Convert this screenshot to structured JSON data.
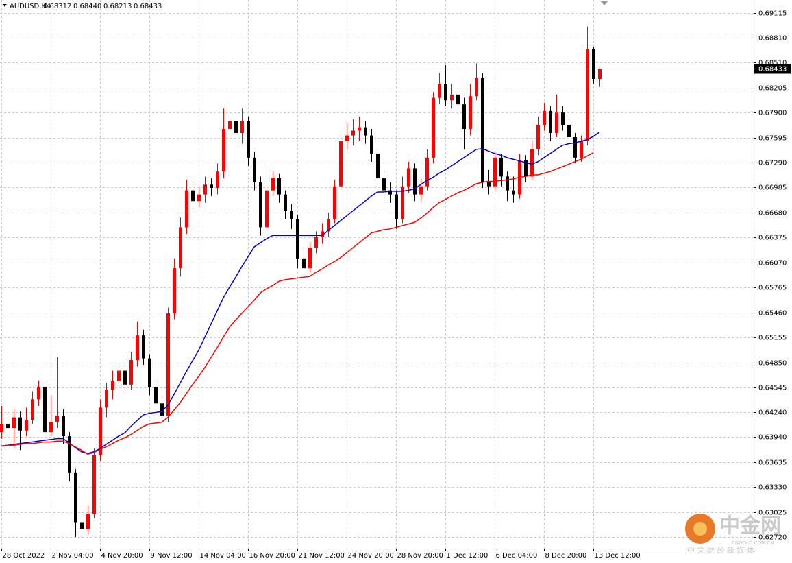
{
  "chart_data": {
    "type": "candlestick",
    "title": "AUDUSD,H4",
    "header_values": [
      {
        "value": 0.68312,
        "label": "0.68312"
      },
      {
        "value": 0.6844,
        "label": "0.68440"
      },
      {
        "value": 0.68213,
        "label": "0.68213"
      },
      {
        "value": 0.68433,
        "label": "0.68433"
      }
    ],
    "current_price": {
      "value": 0.68433,
      "label": "0.68433"
    },
    "up_color": "#ff0000",
    "down_color": "#000000",
    "open": [
      0.64,
      0.641,
      0.6405,
      0.6418,
      0.6402,
      0.6415,
      0.644,
      0.6455,
      0.64,
      0.6412,
      0.642,
      0.6395,
      0.635,
      0.629,
      0.6282,
      0.63,
      0.6372,
      0.643,
      0.6452,
      0.6462,
      0.6475,
      0.6458,
      0.6488,
      0.6518,
      0.649,
      0.6455,
      0.6435,
      0.642,
      0.6545,
      0.66,
      0.665,
      0.6695,
      0.6682,
      0.669,
      0.6702,
      0.6698,
      0.6718,
      0.677,
      0.678,
      0.6765,
      0.678,
      0.6735,
      0.6705,
      0.665,
      0.6695,
      0.671,
      0.669,
      0.667,
      0.666,
      0.6612,
      0.66,
      0.6625,
      0.6638,
      0.6645,
      0.666,
      0.67,
      0.6755,
      0.6762,
      0.6768,
      0.6772,
      0.6762,
      0.674,
      0.671,
      0.6695,
      0.669,
      0.666,
      0.67,
      0.6722,
      0.669,
      0.67,
      0.6735,
      0.6808,
      0.6825,
      0.6805,
      0.6812,
      0.68,
      0.677,
      0.681,
      0.6832,
      0.6705,
      0.67,
      0.6735,
      0.6712,
      0.6695,
      0.669,
      0.6732,
      0.6712,
      0.6745,
      0.6775,
      0.6792,
      0.6765,
      0.679,
      0.6775,
      0.676,
      0.6735,
      0.6755,
      0.6868,
      0.68312
    ],
    "high": [
      0.6432,
      0.642,
      0.6428,
      0.6425,
      0.643,
      0.645,
      0.6463,
      0.646,
      0.6445,
      0.6492,
      0.6428,
      0.64,
      0.6355,
      0.6298,
      0.631,
      0.638,
      0.644,
      0.646,
      0.6475,
      0.6485,
      0.6482,
      0.6498,
      0.6535,
      0.6525,
      0.6495,
      0.6462,
      0.644,
      0.6552,
      0.6612,
      0.6662,
      0.6708,
      0.6705,
      0.67,
      0.6712,
      0.671,
      0.6728,
      0.6795,
      0.679,
      0.6788,
      0.6795,
      0.6785,
      0.6742,
      0.6712,
      0.6702,
      0.6718,
      0.6715,
      0.6695,
      0.6678,
      0.6665,
      0.662,
      0.6632,
      0.6645,
      0.6655,
      0.6668,
      0.6708,
      0.6765,
      0.6778,
      0.6782,
      0.6785,
      0.678,
      0.677,
      0.6745,
      0.6718,
      0.6705,
      0.6695,
      0.6712,
      0.673,
      0.6728,
      0.671,
      0.6745,
      0.6815,
      0.6838,
      0.6848,
      0.6825,
      0.682,
      0.6808,
      0.6825,
      0.685,
      0.6838,
      0.672,
      0.6742,
      0.674,
      0.6718,
      0.6712,
      0.674,
      0.6738,
      0.6755,
      0.6785,
      0.6802,
      0.6798,
      0.6812,
      0.6798,
      0.6782,
      0.6765,
      0.6762,
      0.6895,
      0.687,
      0.6844
    ],
    "low": [
      0.6392,
      0.6385,
      0.638,
      0.6378,
      0.6395,
      0.641,
      0.6432,
      0.639,
      0.6395,
      0.6405,
      0.6385,
      0.634,
      0.6272,
      0.6272,
      0.6275,
      0.6295,
      0.6365,
      0.6418,
      0.644,
      0.6455,
      0.645,
      0.6452,
      0.648,
      0.6482,
      0.6445,
      0.642,
      0.6392,
      0.6412,
      0.6538,
      0.659,
      0.6642,
      0.6672,
      0.6675,
      0.668,
      0.6688,
      0.669,
      0.671,
      0.6755,
      0.675,
      0.6752,
      0.6725,
      0.6695,
      0.664,
      0.6645,
      0.6688,
      0.668,
      0.666,
      0.6648,
      0.66,
      0.6592,
      0.6595,
      0.6618,
      0.663,
      0.6638,
      0.6655,
      0.6695,
      0.6745,
      0.675,
      0.6755,
      0.6752,
      0.673,
      0.67,
      0.6685,
      0.668,
      0.6648,
      0.6655,
      0.6692,
      0.6682,
      0.6682,
      0.6695,
      0.6728,
      0.68,
      0.6798,
      0.6795,
      0.679,
      0.6745,
      0.6762,
      0.6805,
      0.6698,
      0.669,
      0.6695,
      0.67,
      0.6682,
      0.668,
      0.6685,
      0.6705,
      0.6708,
      0.6738,
      0.6768,
      0.6755,
      0.676,
      0.6768,
      0.675,
      0.6728,
      0.673,
      0.675,
      0.6825,
      0.68213
    ],
    "close": [
      0.641,
      0.6405,
      0.6418,
      0.6402,
      0.6415,
      0.644,
      0.6455,
      0.64,
      0.6412,
      0.642,
      0.6395,
      0.635,
      0.629,
      0.6282,
      0.63,
      0.6372,
      0.643,
      0.6452,
      0.6462,
      0.6475,
      0.6458,
      0.6488,
      0.6518,
      0.649,
      0.6455,
      0.6435,
      0.642,
      0.6545,
      0.66,
      0.665,
      0.6695,
      0.6682,
      0.669,
      0.6702,
      0.6698,
      0.6718,
      0.677,
      0.678,
      0.6765,
      0.678,
      0.6735,
      0.6705,
      0.665,
      0.6695,
      0.671,
      0.669,
      0.667,
      0.666,
      0.6612,
      0.66,
      0.6625,
      0.6638,
      0.6645,
      0.666,
      0.67,
      0.6755,
      0.6762,
      0.6768,
      0.6772,
      0.6762,
      0.674,
      0.671,
      0.6695,
      0.669,
      0.666,
      0.67,
      0.6722,
      0.669,
      0.67,
      0.6735,
      0.6808,
      0.6825,
      0.6805,
      0.6812,
      0.68,
      0.677,
      0.681,
      0.6832,
      0.6705,
      0.67,
      0.6735,
      0.6712,
      0.6695,
      0.669,
      0.6732,
      0.6712,
      0.6745,
      0.6775,
      0.6792,
      0.6765,
      0.679,
      0.6775,
      0.676,
      0.6735,
      0.6755,
      0.6868,
      0.68312,
      0.68433
    ],
    "moving_averages": [
      {
        "color": "#0000cc",
        "values": [
          0.6383,
          0.6384,
          0.6385,
          0.6386,
          0.6387,
          0.6388,
          0.6389,
          0.639,
          0.6391,
          0.6392,
          0.6392,
          0.6387,
          0.6381,
          0.6376,
          0.6374,
          0.6376,
          0.638,
          0.6385,
          0.639,
          0.6395,
          0.6399,
          0.6407,
          0.6414,
          0.6421,
          0.6423,
          0.6424,
          0.6425,
          0.6433,
          0.6446,
          0.646,
          0.6474,
          0.6487,
          0.65,
          0.6516,
          0.6532,
          0.6548,
          0.6564,
          0.6577,
          0.6589,
          0.6602,
          0.6614,
          0.6626,
          0.6631,
          0.6636,
          0.664,
          0.664,
          0.664,
          0.664,
          0.664,
          0.664,
          0.664,
          0.664,
          0.664,
          0.6646,
          0.6652,
          0.6658,
          0.6664,
          0.667,
          0.6676,
          0.6682,
          0.6688,
          0.6693,
          0.6693,
          0.6694,
          0.6694,
          0.6694,
          0.6695,
          0.6697,
          0.6702,
          0.6707,
          0.6711,
          0.6716,
          0.672,
          0.6725,
          0.673,
          0.6735,
          0.674,
          0.6745,
          0.6746,
          0.6743,
          0.674,
          0.6738,
          0.6735,
          0.6733,
          0.6731,
          0.6729,
          0.6727,
          0.673,
          0.6735,
          0.674,
          0.6745,
          0.675,
          0.6752,
          0.6753,
          0.6755,
          0.6757,
          0.6761,
          0.6766
        ]
      },
      {
        "color": "#ff0000",
        "values": [
          0.6383,
          0.6384,
          0.6384,
          0.6385,
          0.6386,
          0.6386,
          0.6387,
          0.6388,
          0.6388,
          0.6389,
          0.6389,
          0.6386,
          0.6382,
          0.6378,
          0.6373,
          0.6375,
          0.6379,
          0.6382,
          0.6386,
          0.639,
          0.6393,
          0.6397,
          0.6402,
          0.6407,
          0.641,
          0.6411,
          0.6412,
          0.6418,
          0.6427,
          0.6436,
          0.6447,
          0.6458,
          0.6468,
          0.6479,
          0.6491,
          0.6503,
          0.6516,
          0.6528,
          0.6537,
          0.6545,
          0.6553,
          0.6561,
          0.657,
          0.6575,
          0.6579,
          0.6584,
          0.6586,
          0.6587,
          0.6588,
          0.6589,
          0.659,
          0.6595,
          0.6599,
          0.6604,
          0.6608,
          0.6613,
          0.6619,
          0.6625,
          0.6631,
          0.6637,
          0.6643,
          0.6645,
          0.6647,
          0.6648,
          0.665,
          0.6652,
          0.6654,
          0.6656,
          0.6661,
          0.6667,
          0.6674,
          0.668,
          0.6684,
          0.6688,
          0.6692,
          0.6695,
          0.6699,
          0.6703,
          0.6705,
          0.6706,
          0.6706,
          0.6707,
          0.6708,
          0.6709,
          0.6711,
          0.6712,
          0.6714,
          0.6714,
          0.6716,
          0.6718,
          0.6721,
          0.6724,
          0.6727,
          0.673,
          0.6733,
          0.6737,
          0.6741
        ]
      }
    ],
    "ylim": [
      0.62578,
      0.69274
    ],
    "yticks": [
      {
        "value": 0.69115,
        "label": "0.69115"
      },
      {
        "value": 0.6881,
        "label": "0.68810"
      },
      {
        "value": 0.6851,
        "label": "0.68510"
      },
      {
        "value": 0.68205,
        "label": "0.68205"
      },
      {
        "value": 0.679,
        "label": "0.67900"
      },
      {
        "value": 0.67595,
        "label": "0.67595"
      },
      {
        "value": 0.6729,
        "label": "0.67290"
      },
      {
        "value": 0.66985,
        "label": "0.66985"
      },
      {
        "value": 0.6668,
        "label": "0.66680"
      },
      {
        "value": 0.66375,
        "label": "0.66375"
      },
      {
        "value": 0.6607,
        "label": "0.66070"
      },
      {
        "value": 0.65765,
        "label": "0.65765"
      },
      {
        "value": 0.6546,
        "label": "0.65460"
      },
      {
        "value": 0.65155,
        "label": "0.65155"
      },
      {
        "value": 0.6485,
        "label": "0.64850"
      },
      {
        "value": 0.64545,
        "label": "0.64545"
      },
      {
        "value": 0.6424,
        "label": "0.64240"
      },
      {
        "value": 0.6394,
        "label": "0.63940"
      },
      {
        "value": 0.63635,
        "label": "0.63635"
      },
      {
        "value": 0.6333,
        "label": "0.63330"
      },
      {
        "value": 0.63025,
        "label": "0.63025"
      },
      {
        "value": 0.6272,
        "label": "0.62720"
      }
    ],
    "xticks": [
      {
        "value": 0,
        "label": "28 Oct 2022"
      },
      {
        "value": 8,
        "label": "2 Nov 04:00"
      },
      {
        "value": 16,
        "label": "4 Nov 20:00"
      },
      {
        "value": 24,
        "label": "9 Nov 12:00"
      },
      {
        "value": 32,
        "label": "14 Nov 04:00"
      },
      {
        "value": 40,
        "label": "16 Nov 20:00"
      },
      {
        "value": 48,
        "label": "21 Nov 12:00"
      },
      {
        "value": 56,
        "label": "24 Nov 20:00"
      },
      {
        "value": 64,
        "label": "28 Nov 20:00"
      },
      {
        "value": 72,
        "label": "1 Dec 12:00"
      },
      {
        "value": 80,
        "label": "6 Dec 04:00"
      },
      {
        "value": 88,
        "label": "8 Dec 20:00"
      },
      {
        "value": 96,
        "label": "13 Dec 12:00"
      }
    ],
    "grid": true,
    "watermark": "中金网",
    "watermark_url": "CNGOLD.COM.CN",
    "watermark_sub": "中 文 财 经 新 媒 体"
  }
}
